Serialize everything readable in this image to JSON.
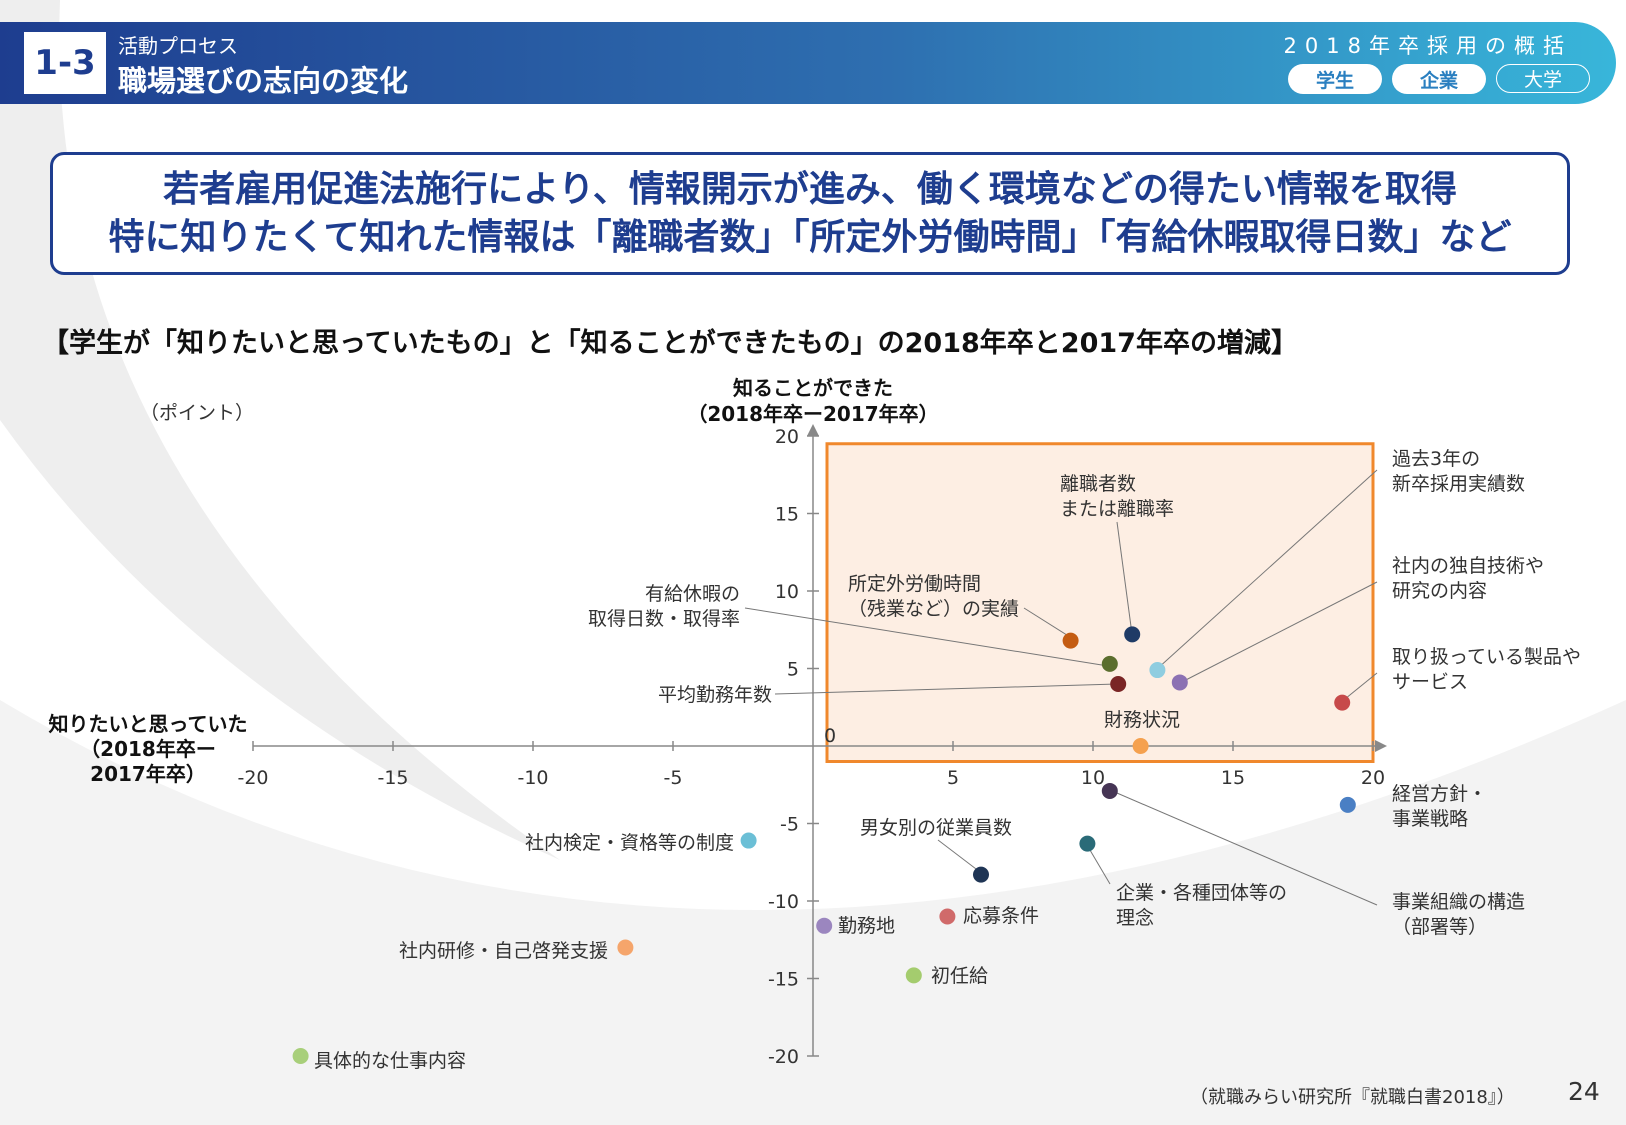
{
  "header": {
    "section_no": "1-3",
    "category": "活動プロセス",
    "title": "職場選びの志向の変化",
    "report_title": "2018年卒採用の概括",
    "tabs": [
      {
        "label": "学生",
        "active": true
      },
      {
        "label": "企業",
        "active": true
      },
      {
        "label": "大学",
        "active": false
      }
    ]
  },
  "callout": {
    "line1": "若者雇用促進法施行により、情報開示が進み、働く環境などの得たい情報を取得",
    "line2": "特に知りたくて知れた情報は「離職者数」「所定外労働時間」「有給休暇取得日数」など"
  },
  "chart_title": "【学生が「知りたいと思っていたもの」と「知ることができたもの」の2018年卒と2017年卒の増減】",
  "chart_data": {
    "type": "scatter",
    "unit_label": "（ポイント）",
    "ylabel_lines": [
      "知ることができた",
      "（2018年卒ー2017年卒）"
    ],
    "xlabel_lines": [
      "知りたいと思っていた",
      "（2018年卒ー",
      "2017年卒）"
    ],
    "xlim": [
      -20,
      20
    ],
    "ylim": [
      -20,
      20
    ],
    "xticks": [
      -20,
      -15,
      -10,
      -5,
      0,
      5,
      10,
      15,
      20
    ],
    "yticks": [
      20,
      15,
      10,
      5,
      -5,
      -10,
      -15,
      -20
    ],
    "highlight_region": {
      "x": [
        0.5,
        20
      ],
      "y": [
        -1,
        19.5
      ],
      "color": "#f0882c"
    },
    "points": [
      {
        "label": "離職者数または離職率",
        "label_lines": [
          "離職者数",
          "または離職率"
        ],
        "x": 11.4,
        "y": 7.2,
        "color": "#1f3b66"
      },
      {
        "label": "所定外労働時間（残業など）の実績",
        "label_lines": [
          "所定外労働時間",
          "（残業など）の実績"
        ],
        "x": 9.2,
        "y": 6.8,
        "color": "#c45c12"
      },
      {
        "label": "有給休暇の取得日数・取得率",
        "label_lines": [
          "有給休暇の",
          "取得日数・取得率"
        ],
        "x": 10.6,
        "y": 5.3,
        "color": "#5b6e2e"
      },
      {
        "label": "平均勤務年数",
        "label_lines": [
          "平均勤務年数"
        ],
        "x": 10.9,
        "y": 4.0,
        "color": "#7a2525"
      },
      {
        "label": "過去3年の新卒採用実績数",
        "label_lines": [
          "過去3年の",
          "新卒採用実績数"
        ],
        "x": 12.3,
        "y": 4.9,
        "color": "#8fcde0"
      },
      {
        "label": "社内の独自技術や研究の内容",
        "label_lines": [
          "社内の独自技術や",
          "研究の内容"
        ],
        "x": 13.1,
        "y": 4.1,
        "color": "#8c71b3"
      },
      {
        "label": "取り扱っている製品やサービス",
        "label_lines": [
          "取り扱っている製品や",
          "サービス"
        ],
        "x": 18.9,
        "y": 2.8,
        "color": "#c74a4a"
      },
      {
        "label": "財務状況",
        "label_lines": [
          "財務状況"
        ],
        "x": 11.7,
        "y": 0.0,
        "color": "#f5a14f"
      },
      {
        "label": "経営方針・事業戦略",
        "label_lines": [
          "経営方針・",
          "事業戦略"
        ],
        "x": 19.1,
        "y": -3.8,
        "color": "#4a7fc4"
      },
      {
        "label": "事業組織の構造（部署等）",
        "label_lines": [
          "事業組織の構造",
          "（部署等）"
        ],
        "x": 10.6,
        "y": -2.9,
        "color": "#463555"
      },
      {
        "label": "企業・各種団体等の理念",
        "label_lines": [
          "企業・各種団体等の",
          "理念"
        ],
        "x": 9.8,
        "y": -6.3,
        "color": "#2a6b78"
      },
      {
        "label": "男女別の従業員数",
        "label_lines": [
          "男女別の従業員数"
        ],
        "x": 6.0,
        "y": -8.3,
        "color": "#1f3555"
      },
      {
        "label": "社内検定・資格等の制度",
        "label_lines": [
          "社内検定・資格等の制度"
        ],
        "x": -2.3,
        "y": -6.1,
        "color": "#6bbfd6"
      },
      {
        "label": "勤務地",
        "label_lines": [
          "勤務地"
        ],
        "x": 0.4,
        "y": -11.6,
        "color": "#9b86bf"
      },
      {
        "label": "応募条件",
        "label_lines": [
          "応募条件"
        ],
        "x": 4.8,
        "y": -11.0,
        "color": "#d06a6a"
      },
      {
        "label": "初任給",
        "label_lines": [
          "初任給"
        ],
        "x": 3.6,
        "y": -14.8,
        "color": "#a4cc6e"
      },
      {
        "label": "社内研修・自己啓発支援",
        "label_lines": [
          "社内研修・自己啓発支援"
        ],
        "x": -6.7,
        "y": -13.0,
        "color": "#f5a56b"
      },
      {
        "label": "具体的な仕事内容",
        "label_lines": [
          "具体的な仕事内容"
        ],
        "x": -18.3,
        "y": -20.0,
        "color": "#a8cf7a"
      }
    ]
  },
  "footer": {
    "source": "（就職みらい研究所『就職白書2018』）",
    "page": "24"
  }
}
